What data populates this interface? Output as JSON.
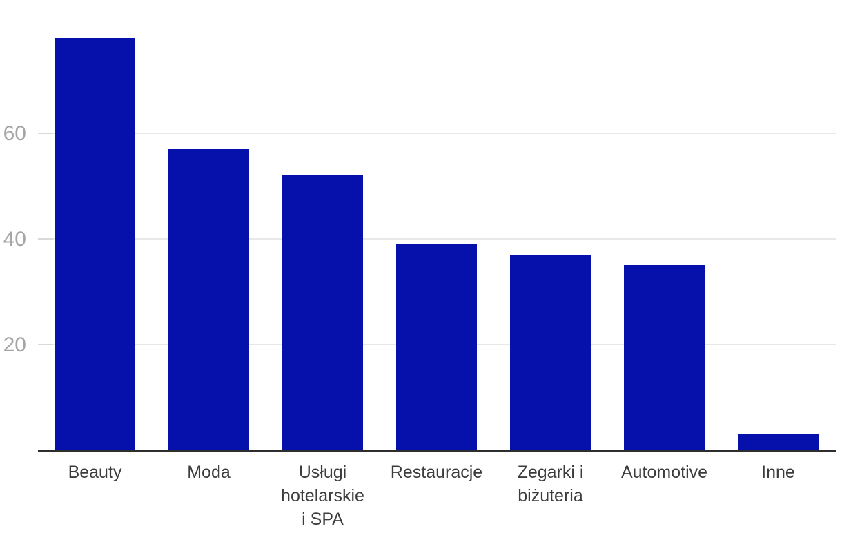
{
  "chart_data": {
    "type": "bar",
    "title": "",
    "xlabel": "",
    "ylabel": "",
    "categories": [
      "Beauty",
      "Moda",
      "Usługi hotelarskie i SPA",
      "Restauracje",
      "Zegarki i biżuteria",
      "Automotive",
      "Inne"
    ],
    "category_display_lines": [
      [
        "Beauty"
      ],
      [
        "Moda"
      ],
      [
        "Usługi",
        "hotelarskie",
        "i SPA"
      ],
      [
        "Restauracje"
      ],
      [
        "Zegarki i",
        "biżuteria"
      ],
      [
        "Automotive"
      ],
      [
        "Inne"
      ]
    ],
    "values": [
      78,
      57,
      52,
      39,
      37,
      35,
      3
    ],
    "ylim": [
      0,
      80
    ],
    "yticks": [
      20,
      40,
      60
    ],
    "ytick_labels": [
      "20",
      "40",
      "60"
    ],
    "grid": true,
    "legend": false,
    "colors": {
      "bar": "#0511aa",
      "axis_line": "#2e2e2e",
      "gridline": "#e8e8e8",
      "tick": "#d9d9d9",
      "ytick_label": "#a5a5a5",
      "xtick_label": "#3c3c3c",
      "background": "#ffffff"
    }
  }
}
